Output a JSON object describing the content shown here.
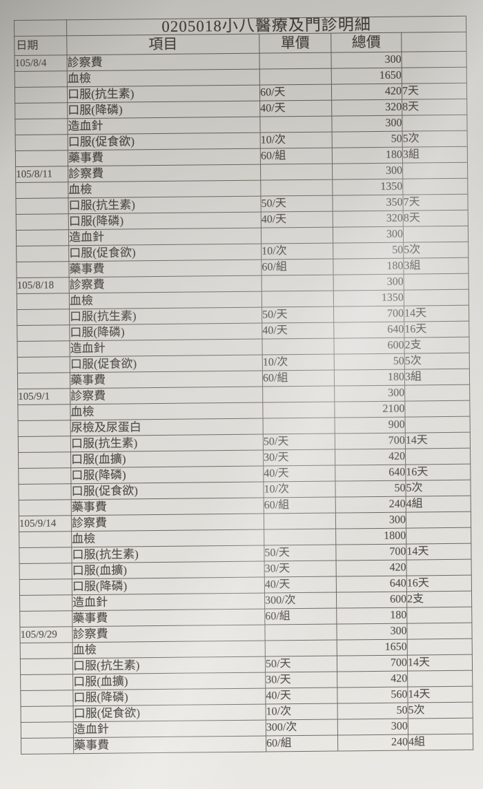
{
  "title": "0205018小八醫療及門診明細",
  "colors": {
    "paper": "#dddbd6",
    "table_line": "#5f5c56",
    "ink": "#45423d"
  },
  "table": {
    "columns": [
      "日期",
      "項目",
      "單價",
      "總價",
      ""
    ],
    "sections": [
      {
        "date": "105/8/4",
        "rows": [
          {
            "item": "診察費",
            "unit": "",
            "total": "300",
            "qty": ""
          },
          {
            "item": "血檢",
            "unit": "",
            "total": "1650",
            "qty": ""
          },
          {
            "item": "口服(抗生素)",
            "unit": "60/天",
            "total": "420",
            "qty": "7天"
          },
          {
            "item": "口服(降磷)",
            "unit": "40/天",
            "total": "320",
            "qty": "8天"
          },
          {
            "item": "造血針",
            "unit": "",
            "total": "300",
            "qty": ""
          },
          {
            "item": "口服(促食欲)",
            "unit": "10/次",
            "total": "50",
            "qty": "5次"
          },
          {
            "item": "藥事費",
            "unit": "60/組",
            "total": "180",
            "qty": "3組"
          }
        ]
      },
      {
        "date": "105/8/11",
        "rows": [
          {
            "item": "診察費",
            "unit": "",
            "total": "300",
            "qty": ""
          },
          {
            "item": "血檢",
            "unit": "",
            "total": "1350",
            "qty": ""
          },
          {
            "item": "口服(抗生素)",
            "unit": "50/天",
            "total": "350",
            "qty": "7天"
          },
          {
            "item": "口服(降磷)",
            "unit": "40/天",
            "total": "320",
            "qty": "8天"
          },
          {
            "item": "造血針",
            "unit": "",
            "total": "300",
            "qty": ""
          },
          {
            "item": "口服(促食欲)",
            "unit": "10/次",
            "total": "50",
            "qty": "5次"
          },
          {
            "item": "藥事費",
            "unit": "60/組",
            "total": "180",
            "qty": "3組"
          }
        ]
      },
      {
        "date": "105/8/18",
        "rows": [
          {
            "item": "診察費",
            "unit": "",
            "total": "300",
            "qty": ""
          },
          {
            "item": "血檢",
            "unit": "",
            "total": "1350",
            "qty": ""
          },
          {
            "item": "口服(抗生素)",
            "unit": "50/天",
            "total": "700",
            "qty": "14天"
          },
          {
            "item": "口服(降磷)",
            "unit": "40/天",
            "total": "640",
            "qty": "16天"
          },
          {
            "item": "造血針",
            "unit": "",
            "total": "600",
            "qty": "2支"
          },
          {
            "item": "口服(促食欲)",
            "unit": "10/次",
            "total": "50",
            "qty": "5次"
          },
          {
            "item": "藥事費",
            "unit": "60/組",
            "total": "180",
            "qty": "3組"
          }
        ]
      },
      {
        "date": "105/9/1",
        "rows": [
          {
            "item": "診察費",
            "unit": "",
            "total": "300",
            "qty": ""
          },
          {
            "item": "血檢",
            "unit": "",
            "total": "2100",
            "qty": ""
          },
          {
            "item": "尿檢及尿蛋白",
            "unit": "",
            "total": "900",
            "qty": ""
          },
          {
            "item": "口服(抗生素)",
            "unit": "50/天",
            "total": "700",
            "qty": "14天"
          },
          {
            "item": "口服(血擴)",
            "unit": "30/天",
            "total": "420",
            "qty": ""
          },
          {
            "item": "口服(降磷)",
            "unit": "40/天",
            "total": "640",
            "qty": "16天"
          },
          {
            "item": "口服(促食欲)",
            "unit": "10/次",
            "total": "50",
            "qty": "5次"
          },
          {
            "item": "藥事費",
            "unit": "60/組",
            "total": "240",
            "qty": "4組"
          }
        ]
      },
      {
        "date": "105/9/14",
        "rows": [
          {
            "item": "診察費",
            "unit": "",
            "total": "300",
            "qty": ""
          },
          {
            "item": "血檢",
            "unit": "",
            "total": "1800",
            "qty": ""
          },
          {
            "item": "口服(抗生素)",
            "unit": "50/天",
            "total": "700",
            "qty": "14天"
          },
          {
            "item": "口服(血擴)",
            "unit": "30/天",
            "total": "420",
            "qty": ""
          },
          {
            "item": "口服(降磷)",
            "unit": "40/天",
            "total": "640",
            "qty": "16天"
          },
          {
            "item": "造血針",
            "unit": "300/次",
            "total": "600",
            "qty": "2支"
          },
          {
            "item": "藥事費",
            "unit": "60/組",
            "total": "180",
            "qty": ""
          }
        ]
      },
      {
        "date": "105/9/29",
        "rows": [
          {
            "item": "診察費",
            "unit": "",
            "total": "300",
            "qty": ""
          },
          {
            "item": "血檢",
            "unit": "",
            "total": "1650",
            "qty": ""
          },
          {
            "item": "口服(抗生素)",
            "unit": "50/天",
            "total": "700",
            "qty": "14天"
          },
          {
            "item": "口服(血擴)",
            "unit": "30/天",
            "total": "420",
            "qty": ""
          },
          {
            "item": "口服(降磷)",
            "unit": "40/天",
            "total": "560",
            "qty": "14天"
          },
          {
            "item": "口服(促食欲)",
            "unit": "10/次",
            "total": "50",
            "qty": "5次"
          },
          {
            "item": "造血針",
            "unit": "300/次",
            "total": "300",
            "qty": ""
          },
          {
            "item": "藥事費",
            "unit": "60/組",
            "total": "240",
            "qty": "4組"
          }
        ]
      }
    ]
  }
}
